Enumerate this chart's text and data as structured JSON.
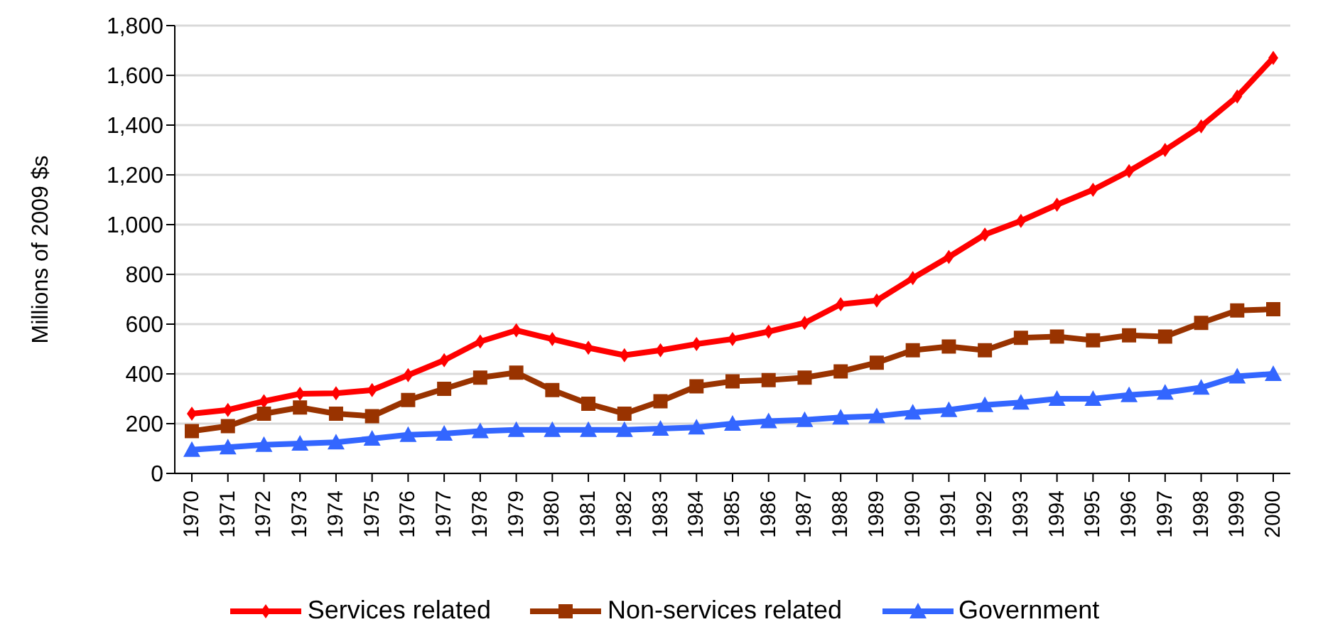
{
  "chart_data": {
    "type": "line",
    "ylabel": "Millions of 2009 $s",
    "categories": [
      "1970",
      "1971",
      "1972",
      "1973",
      "1974",
      "1975",
      "1976",
      "1977",
      "1978",
      "1979",
      "1980",
      "1981",
      "1982",
      "1983",
      "1984",
      "1985",
      "1986",
      "1987",
      "1988",
      "1989",
      "1990",
      "1991",
      "1992",
      "1993",
      "1994",
      "1995",
      "1996",
      "1997",
      "1998",
      "1999",
      "2000"
    ],
    "series": [
      {
        "name": "Services related",
        "color": "#ff0000",
        "marker": "diamond",
        "values": [
          240,
          255,
          290,
          320,
          322,
          335,
          395,
          455,
          530,
          575,
          540,
          505,
          475,
          495,
          520,
          540,
          570,
          605,
          680,
          695,
          785,
          870,
          960,
          1015,
          1080,
          1140,
          1215,
          1300,
          1395,
          1515,
          1670
        ]
      },
      {
        "name": "Non-services related",
        "color": "#993300",
        "marker": "square",
        "values": [
          170,
          190,
          240,
          265,
          240,
          230,
          295,
          340,
          385,
          405,
          335,
          280,
          240,
          290,
          350,
          370,
          375,
          385,
          410,
          445,
          495,
          510,
          495,
          545,
          550,
          535,
          555,
          550,
          605,
          655,
          660
        ]
      },
      {
        "name": "Government",
        "color": "#3366ff",
        "marker": "triangle",
        "values": [
          95,
          105,
          115,
          120,
          125,
          140,
          155,
          160,
          170,
          175,
          175,
          175,
          175,
          180,
          185,
          200,
          210,
          215,
          225,
          230,
          245,
          255,
          275,
          285,
          300,
          300,
          315,
          325,
          345,
          390,
          400
        ]
      }
    ],
    "ylim": [
      0,
      1800
    ],
    "yticks": [
      0,
      200,
      400,
      600,
      800,
      {
        "value": 1000,
        "label": "1,000"
      },
      {
        "value": 1200,
        "label": "1,200"
      },
      {
        "value": 1400,
        "label": "1,400"
      },
      {
        "value": 1600,
        "label": "1,600"
      },
      {
        "value": 1800,
        "label": "1,800"
      }
    ],
    "grid": "y",
    "legend": "bottom",
    "line_style": "solid"
  }
}
